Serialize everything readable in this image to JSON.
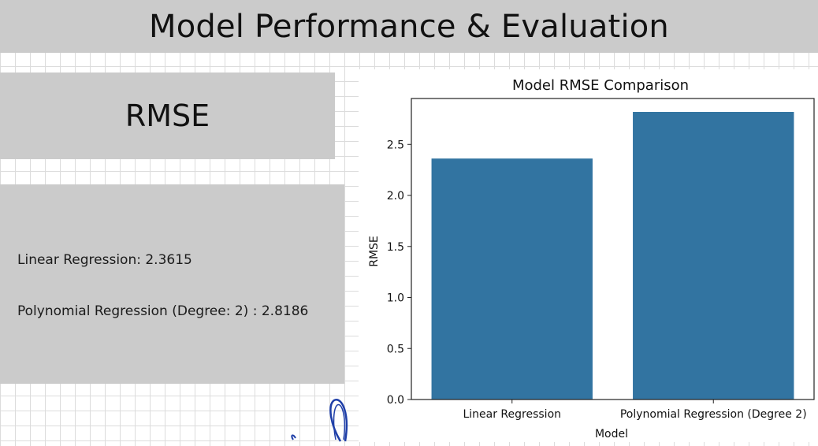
{
  "slide": {
    "title": "Model Performance & Evaluation",
    "section_heading": "RMSE",
    "results": [
      "Linear Regression: 2.3615",
      "Polynomial Regression (Degree: 2) : 2.8186"
    ]
  },
  "colors": {
    "banner": "#cbcbcb",
    "bar": "#3274a1",
    "grid": "#dcdcdc",
    "scribble": "#1f3fa8"
  },
  "chart_data": {
    "type": "bar",
    "title": "Model RMSE Comparison",
    "xlabel": "Model",
    "ylabel": "RMSE",
    "categories": [
      "Linear Regression",
      "Polynomial Regression (Degree 2)"
    ],
    "values": [
      2.3615,
      2.8186
    ],
    "ylim": [
      0,
      2.95
    ],
    "yticks": [
      "0.0",
      "0.5",
      "1.0",
      "1.5",
      "2.0",
      "2.5"
    ],
    "grid": false,
    "legend": "none"
  }
}
